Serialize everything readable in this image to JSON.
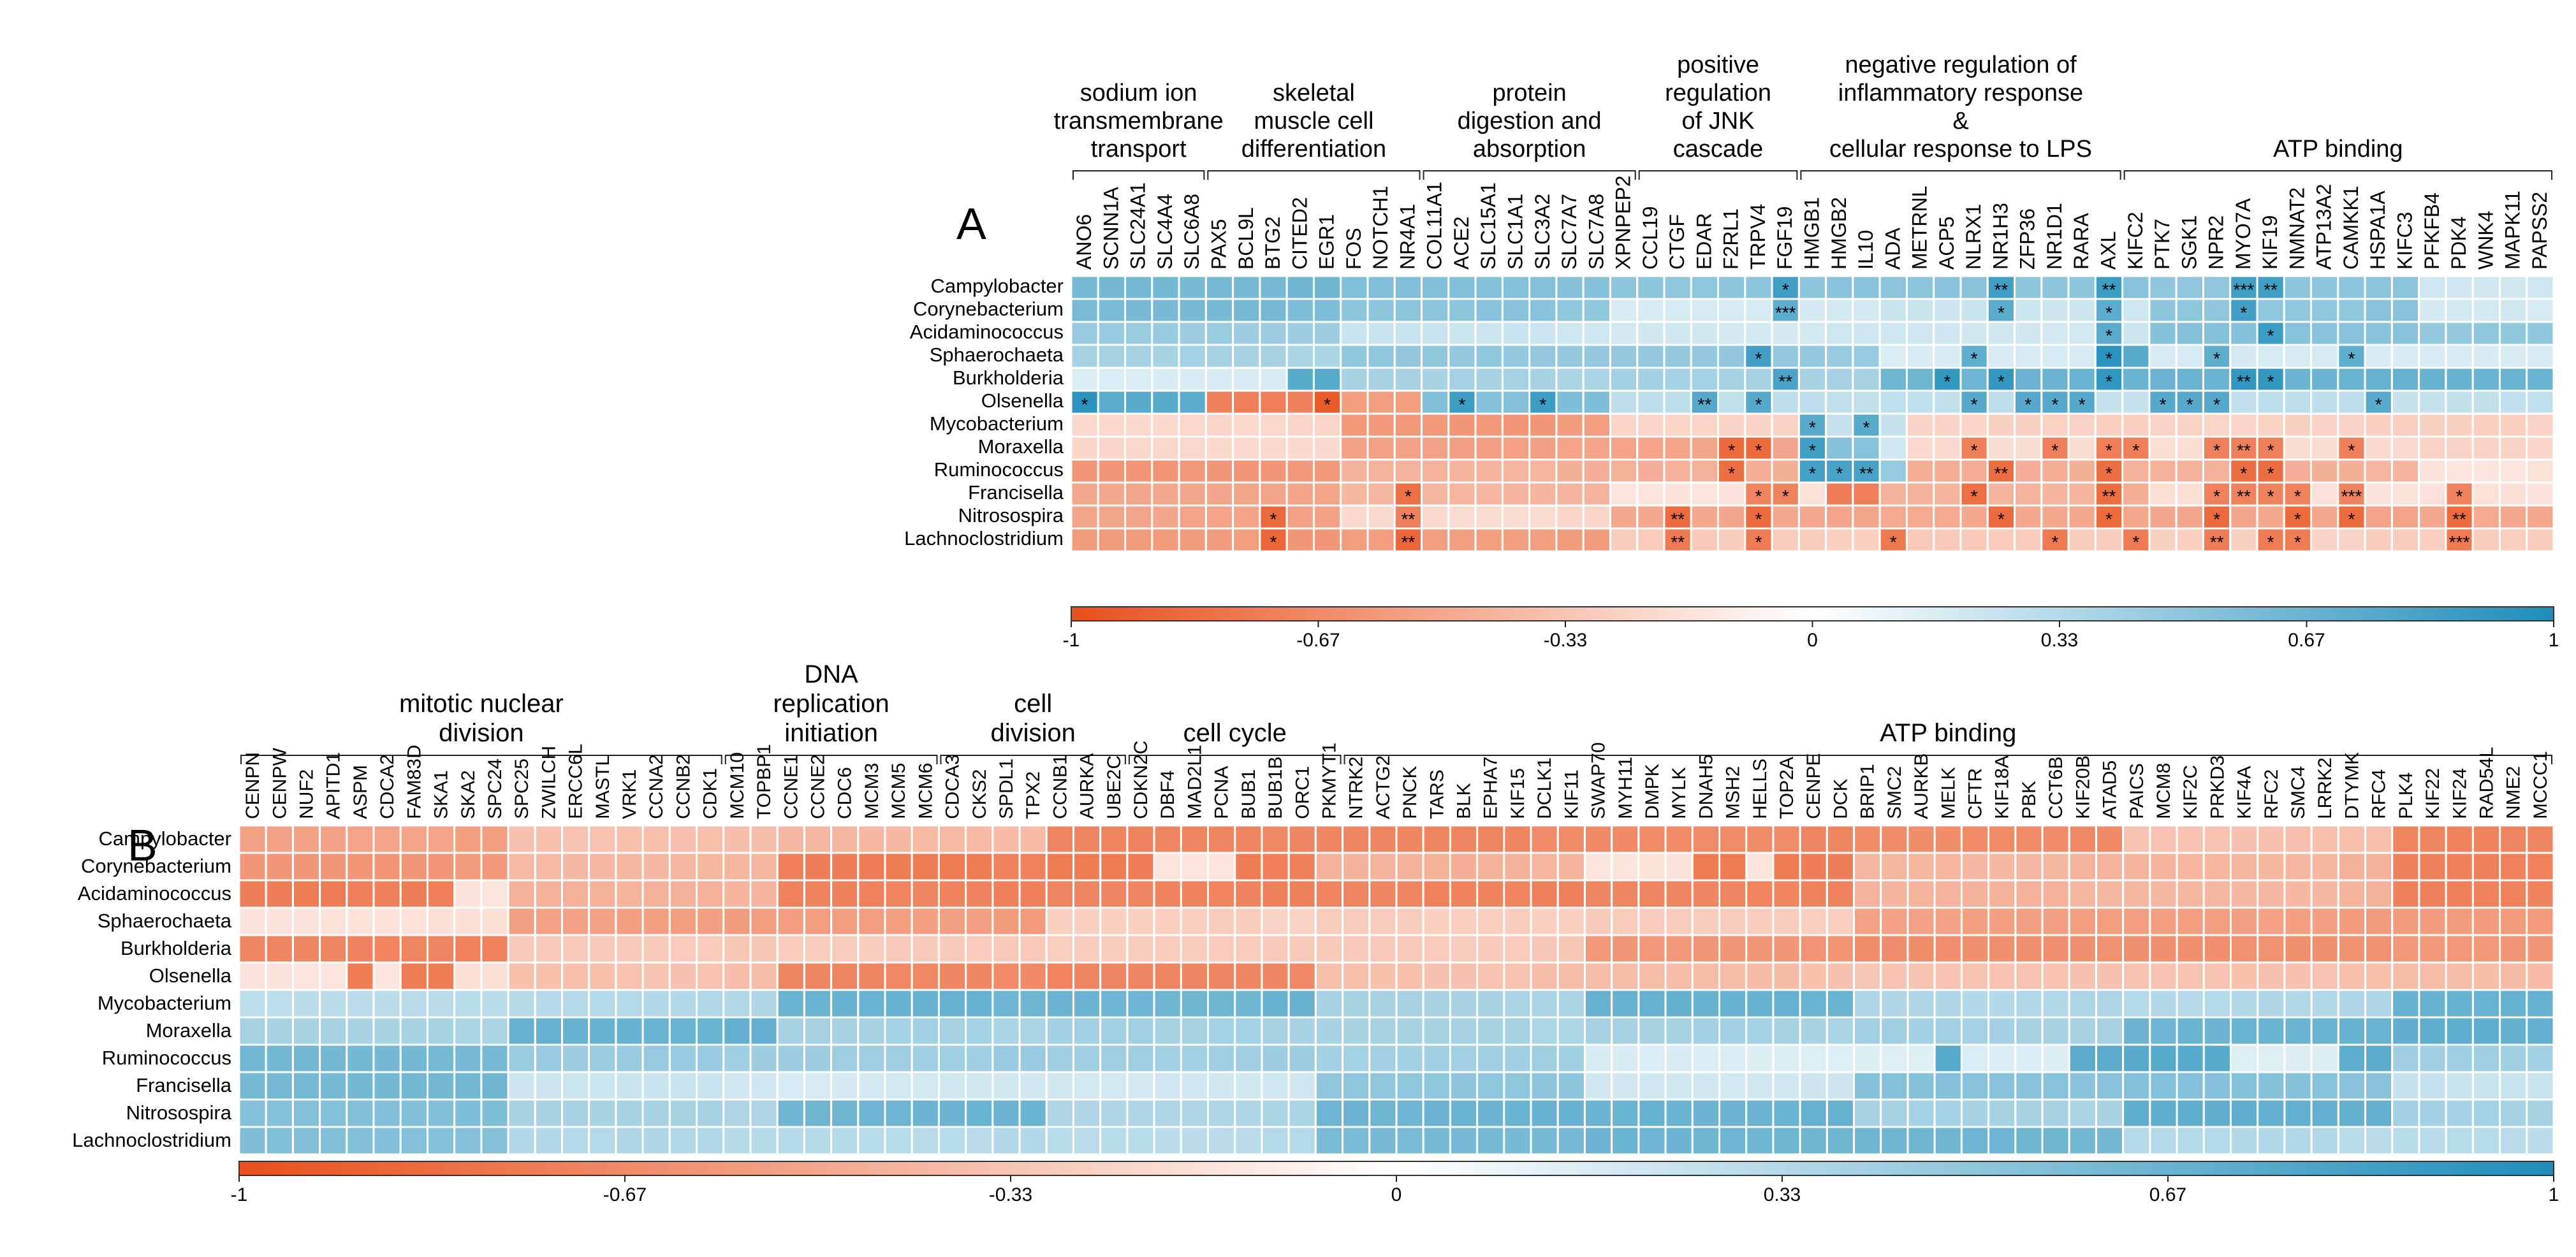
{
  "chart_data": [
    {
      "panel_label": "A",
      "type": "heatmap",
      "color_scale": {
        "min": -1,
        "max": 1,
        "ticks": [
          "-1",
          "-0.67",
          "-0.33",
          "0",
          "0.33",
          "0.67",
          "1"
        ],
        "low_color": "#e8501c",
        "mid_color": "#ffffff",
        "high_color": "#1f8dba"
      },
      "rows": [
        "Campylobacter",
        "Corynebacterium",
        "Acidaminococcus",
        "Sphaerochaeta",
        "Burkholderia",
        "Olsenella",
        "Mycobacterium",
        "Moraxella",
        "Ruminococcus",
        "Francisella",
        "Nitrosospira",
        "Lachnoclostridium"
      ],
      "columns": [
        "ANO6",
        "SCNN1A",
        "SLC24A1",
        "SLC4A4",
        "SLC6A8",
        "PAX5",
        "BCL9L",
        "BTG2",
        "CITED2",
        "EGR1",
        "FOS",
        "NOTCH1",
        "NR4A1",
        "COL11A1",
        "ACE2",
        "SLC15A1",
        "SLC1A1",
        "SLC3A2",
        "SLC7A7",
        "SLC7A8",
        "XPNPEP2",
        "CCL19",
        "CTGF",
        "EDAR",
        "F2RL1",
        "TRPV4",
        "FGF19",
        "HMGB1",
        "HMGB2",
        "IL10",
        "ADA",
        "METRNL",
        "ACP5",
        "NLRX1",
        "NR1H3",
        "ZFP36",
        "NR1D1",
        "RARA",
        "AXL",
        "KIFC2",
        "PTK7",
        "SGK1",
        "NPR2",
        "MYO7A",
        "KIF19",
        "NMNAT2",
        "ATP13A2",
        "CAMKK1",
        "HSPA1A",
        "KIFC3",
        "PFKFB4",
        "PDK4",
        "WNK4",
        "MAPK11",
        "PAPSS2"
      ],
      "groups": [
        {
          "label_lines": [
            "sodium ion",
            "transmembrane",
            "transport"
          ],
          "from": 0,
          "to": 4
        },
        {
          "label_lines": [
            "skeletal",
            "muscle cell",
            "differentiation"
          ],
          "from": 5,
          "to": 12
        },
        {
          "label_lines": [
            "protein",
            "digestion and",
            "absorption"
          ],
          "from": 13,
          "to": 20
        },
        {
          "label_lines": [
            "positive",
            "regulation",
            "of JNK",
            "cascade"
          ],
          "from": 21,
          "to": 26
        },
        {
          "label_lines": [
            "negative regulation of",
            "inflammatory response",
            "&",
            "cellular response to LPS"
          ],
          "from": 27,
          "to": 38
        },
        {
          "label_lines": [
            "ATP binding"
          ],
          "from": 39,
          "to": 54
        }
      ],
      "significance_marks": [
        [
          "Campylobacter",
          "FGF19",
          "*"
        ],
        [
          "Campylobacter",
          "NR1H3",
          "**"
        ],
        [
          "Campylobacter",
          "AXL",
          "**"
        ],
        [
          "Campylobacter",
          "MYO7A",
          "***"
        ],
        [
          "Campylobacter",
          "KIF19",
          "**"
        ],
        [
          "Corynebacterium",
          "FGF19",
          "***"
        ],
        [
          "Corynebacterium",
          "NR1H3",
          "*"
        ],
        [
          "Corynebacterium",
          "AXL",
          "*"
        ],
        [
          "Corynebacterium",
          "MYO7A",
          "*"
        ],
        [
          "Acidaminococcus",
          "AXL",
          "*"
        ],
        [
          "Acidaminococcus",
          "KIF19",
          "*"
        ],
        [
          "Sphaerochaeta",
          "TRPV4",
          "*"
        ],
        [
          "Sphaerochaeta",
          "NLRX1",
          "*"
        ],
        [
          "Sphaerochaeta",
          "AXL",
          "*"
        ],
        [
          "Sphaerochaeta",
          "NPR2",
          "*"
        ],
        [
          "Sphaerochaeta",
          "CAMKK1",
          "*"
        ],
        [
          "Burkholderia",
          "FGF19",
          "**"
        ],
        [
          "Burkholderia",
          "ACP5",
          "*"
        ],
        [
          "Burkholderia",
          "NR1H3",
          "*"
        ],
        [
          "Burkholderia",
          "AXL",
          "*"
        ],
        [
          "Burkholderia",
          "MYO7A",
          "**"
        ],
        [
          "Burkholderia",
          "KIF19",
          "*"
        ],
        [
          "Olsenella",
          "ANO6",
          "*"
        ],
        [
          "Olsenella",
          "EGR1",
          "*"
        ],
        [
          "Olsenella",
          "ACE2",
          "*"
        ],
        [
          "Olsenella",
          "SLC3A2",
          "*"
        ],
        [
          "Olsenella",
          "EDAR",
          "**"
        ],
        [
          "Olsenella",
          "TRPV4",
          "*"
        ],
        [
          "Olsenella",
          "NLRX1",
          "*"
        ],
        [
          "Olsenella",
          "ZFP36",
          "*"
        ],
        [
          "Olsenella",
          "NR1D1",
          "*"
        ],
        [
          "Olsenella",
          "RARA",
          "*"
        ],
        [
          "Olsenella",
          "PTK7",
          "*"
        ],
        [
          "Olsenella",
          "SGK1",
          "*"
        ],
        [
          "Olsenella",
          "NPR2",
          "*"
        ],
        [
          "Olsenella",
          "HSPA1A",
          "*"
        ],
        [
          "Mycobacterium",
          "HMGB1",
          "*"
        ],
        [
          "Mycobacterium",
          "IL10",
          "*"
        ],
        [
          "Moraxella",
          "F2RL1",
          "*"
        ],
        [
          "Moraxella",
          "TRPV4",
          "*"
        ],
        [
          "Moraxella",
          "HMGB1",
          "*"
        ],
        [
          "Moraxella",
          "NLRX1",
          "*"
        ],
        [
          "Moraxella",
          "NR1D1",
          "*"
        ],
        [
          "Moraxella",
          "AXL",
          "*"
        ],
        [
          "Moraxella",
          "KIFC2",
          "*"
        ],
        [
          "Moraxella",
          "NPR2",
          "*"
        ],
        [
          "Moraxella",
          "MYO7A",
          "**"
        ],
        [
          "Moraxella",
          "KIF19",
          "*"
        ],
        [
          "Moraxella",
          "CAMKK1",
          "*"
        ],
        [
          "Ruminococcus",
          "F2RL1",
          "*"
        ],
        [
          "Ruminococcus",
          "HMGB1",
          "*"
        ],
        [
          "Ruminococcus",
          "HMGB2",
          "*"
        ],
        [
          "Ruminococcus",
          "IL10",
          "**"
        ],
        [
          "Ruminococcus",
          "NR1H3",
          "**"
        ],
        [
          "Ruminococcus",
          "AXL",
          "*"
        ],
        [
          "Ruminococcus",
          "MYO7A",
          "*"
        ],
        [
          "Ruminococcus",
          "KIF19",
          "*"
        ],
        [
          "Francisella",
          "NR4A1",
          "*"
        ],
        [
          "Francisella",
          "TRPV4",
          "*"
        ],
        [
          "Francisella",
          "FGF19",
          "*"
        ],
        [
          "Francisella",
          "NLRX1",
          "*"
        ],
        [
          "Francisella",
          "AXL",
          "**"
        ],
        [
          "Francisella",
          "NPR2",
          "*"
        ],
        [
          "Francisella",
          "MYO7A",
          "**"
        ],
        [
          "Francisella",
          "KIF19",
          "*"
        ],
        [
          "Francisella",
          "NMNAT2",
          "*"
        ],
        [
          "Francisella",
          "CAMKK1",
          "***"
        ],
        [
          "Francisella",
          "PDK4",
          "*"
        ],
        [
          "Nitrosospira",
          "NR4A1",
          "**"
        ],
        [
          "Nitrosospira",
          "BTG2",
          "*"
        ],
        [
          "Nitrosospira",
          "CTGF",
          "**"
        ],
        [
          "Nitrosospira",
          "TRPV4",
          "*"
        ],
        [
          "Nitrosospira",
          "NR1H3",
          "*"
        ],
        [
          "Nitrosospira",
          "AXL",
          "*"
        ],
        [
          "Nitrosospira",
          "NPR2",
          "*"
        ],
        [
          "Nitrosospira",
          "NMNAT2",
          "*"
        ],
        [
          "Nitrosospira",
          "CAMKK1",
          "*"
        ],
        [
          "Nitrosospira",
          "PDK4",
          "**"
        ],
        [
          "Lachnoclostridium",
          "BTG2",
          "*"
        ],
        [
          "Lachnoclostridium",
          "NR4A1",
          "**"
        ],
        [
          "Lachnoclostridium",
          "CTGF",
          "**"
        ],
        [
          "Lachnoclostridium",
          "TRPV4",
          "*"
        ],
        [
          "Lachnoclostridium",
          "ADA",
          "*"
        ],
        [
          "Lachnoclostridium",
          "NR1D1",
          "*"
        ],
        [
          "Lachnoclostridium",
          "KIFC2",
          "*"
        ],
        [
          "Lachnoclostridium",
          "NPR2",
          "**"
        ],
        [
          "Lachnoclostridium",
          "KIF19",
          "*"
        ],
        [
          "Lachnoclostridium",
          "NMNAT2",
          "*"
        ],
        [
          "Lachnoclostridium",
          "PDK4",
          "***"
        ]
      ]
    },
    {
      "panel_label": "B",
      "type": "heatmap",
      "color_scale": {
        "min": -1,
        "max": 1,
        "ticks": [
          "-1",
          "-0.67",
          "-0.33",
          "0",
          "0.33",
          "0.67",
          "1"
        ],
        "low_color": "#e8501c",
        "mid_color": "#ffffff",
        "high_color": "#1f8dba"
      },
      "rows": [
        "Campylobacter",
        "Corynebacterium",
        "Acidaminococcus",
        "Sphaerochaeta",
        "Burkholderia",
        "Olsenella",
        "Mycobacterium",
        "Moraxella",
        "Ruminococcus",
        "Francisella",
        "Nitrosospira",
        "Lachnoclostridium"
      ],
      "columns": [
        "CENPN",
        "CENPW",
        "NUF2",
        "APITD1",
        "ASPM",
        "CDCA2",
        "FAM83D",
        "SKA1",
        "SKA2",
        "SPC24",
        "SPC25",
        "ZWILCH",
        "ERCC6L",
        "MASTL",
        "VRK1",
        "CCNA2",
        "CCNB2",
        "CDK1",
        "MCM10",
        "TOPBP1",
        "CCNE1",
        "CCNE2",
        "CDC6",
        "MCM3",
        "MCM5",
        "MCM6",
        "CDCA3",
        "CKS2",
        "SPDL1",
        "TPX2",
        "CCNB1",
        "AURKA",
        "UBE2C",
        "CDKN2C",
        "DBF4",
        "MAD2L1",
        "PCNA",
        "BUB1",
        "BUB1B",
        "ORC1",
        "PKMYT1",
        "NTRK2",
        "ACTG2",
        "PNCK",
        "TARS",
        "BLK",
        "EPHA7",
        "KIF15",
        "DCLK1",
        "KIF11",
        "SWAP70",
        "MYH11",
        "DMPK",
        "MYLK",
        "DNAH5",
        "MSH2",
        "HELLS",
        "TOP2A",
        "CENPE",
        "DCK",
        "BRIP1",
        "SMC2",
        "AURKB",
        "MELK",
        "CFTR",
        "KIF18A",
        "PBK",
        "CCT6B",
        "KIF20B",
        "ATAD5",
        "PAICS",
        "MCM8",
        "KIF2C",
        "PRKD3",
        "KIF4A",
        "RFC2",
        "SMC4",
        "LRRK2",
        "DTYMK",
        "RFC4",
        "PLK4",
        "KIF22",
        "KIF24",
        "RAD54L",
        "NME2",
        "MCCC1"
      ],
      "groups": [
        {
          "label_lines": [
            "mitotic nuclear",
            "division"
          ],
          "from": 0,
          "to": 17
        },
        {
          "label_lines": [
            "DNA",
            "replication",
            "initiation"
          ],
          "from": 18,
          "to": 25
        },
        {
          "label_lines": [
            "cell",
            "division"
          ],
          "from": 26,
          "to": 32
        },
        {
          "label_lines": [
            "cell cycle"
          ],
          "from": 33,
          "to": 40
        },
        {
          "label_lines": [
            "ATP binding"
          ],
          "from": 41,
          "to": 85
        }
      ]
    }
  ]
}
